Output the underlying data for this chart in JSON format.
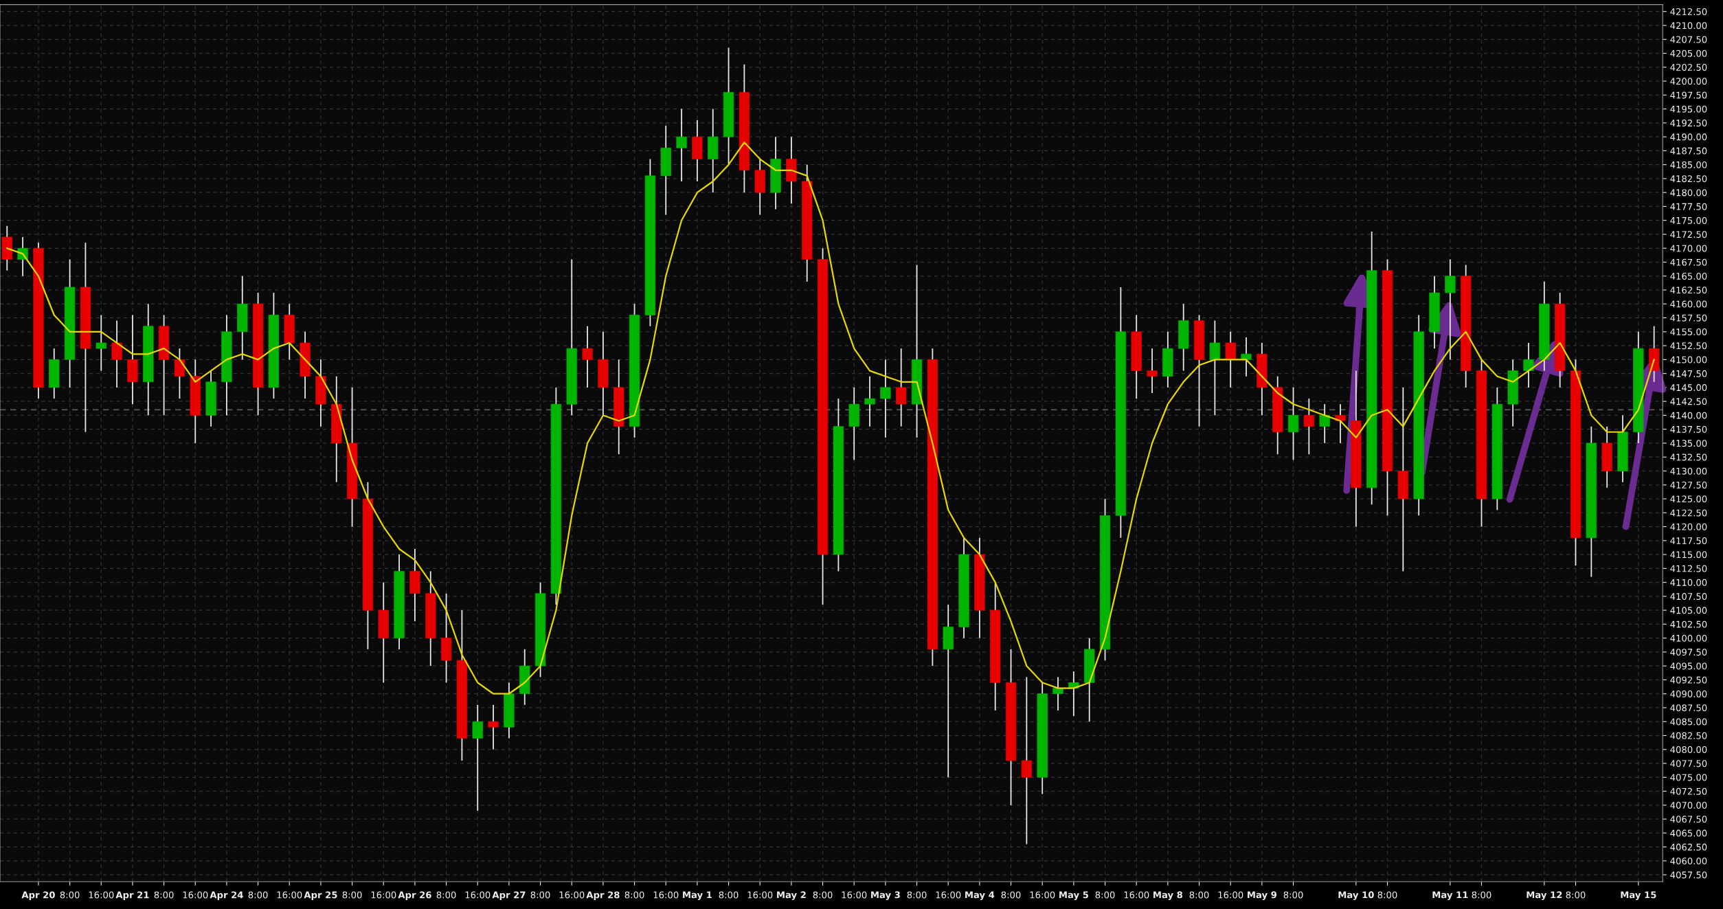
{
  "chart_data": {
    "type": "candlestick",
    "categories": [
      null,
      null,
      "Apr 20",
      null,
      "8:00",
      null,
      "16:00",
      null,
      "Apr 21",
      null,
      "8:00",
      null,
      "16:00",
      null,
      "Apr 24",
      null,
      "8:00",
      null,
      "16:00",
      null,
      "Apr 25",
      null,
      "8:00",
      null,
      "16:00",
      null,
      "Apr 26",
      null,
      "8:00",
      null,
      "16:00",
      null,
      "Apr 27",
      null,
      "8:00",
      null,
      "16:00",
      null,
      "Apr 28",
      null,
      "8:00",
      null,
      "16:00",
      null,
      "May 1",
      null,
      "8:00",
      null,
      "16:00",
      null,
      "May 2",
      null,
      "8:00",
      null,
      "16:00",
      null,
      "May 3",
      null,
      "8:00",
      null,
      "16:00",
      null,
      "May 4",
      null,
      "8:00",
      null,
      "16:00",
      null,
      "May 5",
      null,
      "8:00",
      null,
      "16:00",
      null,
      "May 8",
      null,
      "8:00",
      null,
      "16:00",
      null,
      "May 9",
      null,
      "8:00",
      null,
      null,
      null,
      "May 10",
      null,
      "8:00",
      null,
      null,
      null,
      "May 11",
      null,
      "8:00",
      null,
      null,
      null,
      "May 12",
      null,
      "8:00",
      null,
      null,
      null,
      "May 15",
      null
    ],
    "ohlc": [
      [
        4172,
        4174,
        4166,
        4168
      ],
      [
        4168,
        4172,
        4165,
        4170
      ],
      [
        4170,
        4171,
        4143,
        4145
      ],
      [
        4145,
        4152,
        4143,
        4150
      ],
      [
        4150,
        4168,
        4145,
        4163
      ],
      [
        4163,
        4171,
        4137,
        4152
      ],
      [
        4152,
        4158,
        4148,
        4153
      ],
      [
        4153,
        4157,
        4145,
        4150
      ],
      [
        4150,
        4158,
        4142,
        4146
      ],
      [
        4146,
        4160,
        4140,
        4156
      ],
      [
        4156,
        4158,
        4140,
        4150
      ],
      [
        4150,
        4152,
        4143,
        4147
      ],
      [
        4147,
        4150,
        4135,
        4140
      ],
      [
        4140,
        4148,
        4138,
        4146
      ],
      [
        4146,
        4158,
        4140,
        4155
      ],
      [
        4155,
        4165,
        4150,
        4160
      ],
      [
        4160,
        4162,
        4140,
        4145
      ],
      [
        4145,
        4162,
        4143,
        4158
      ],
      [
        4158,
        4160,
        4150,
        4153
      ],
      [
        4153,
        4155,
        4143,
        4147
      ],
      [
        4147,
        4150,
        4138,
        4142
      ],
      [
        4142,
        4147,
        4128,
        4135
      ],
      [
        4135,
        4145,
        4120,
        4125
      ],
      [
        4125,
        4128,
        4098,
        4105
      ],
      [
        4105,
        4110,
        4092,
        4100
      ],
      [
        4100,
        4115,
        4098,
        4112
      ],
      [
        4112,
        4116,
        4103,
        4108
      ],
      [
        4108,
        4112,
        4095,
        4100
      ],
      [
        4100,
        4108,
        4092,
        4096
      ],
      [
        4096,
        4105,
        4078,
        4082
      ],
      [
        4082,
        4088,
        4069,
        4085
      ],
      [
        4085,
        4088,
        4080,
        4084
      ],
      [
        4084,
        4092,
        4082,
        4090
      ],
      [
        4090,
        4098,
        4088,
        4095
      ],
      [
        4095,
        4110,
        4093,
        4108
      ],
      [
        4108,
        4145,
        4106,
        4142
      ],
      [
        4142,
        4168,
        4140,
        4152
      ],
      [
        4152,
        4156,
        4145,
        4150
      ],
      [
        4150,
        4155,
        4140,
        4145
      ],
      [
        4145,
        4150,
        4133,
        4138
      ],
      [
        4138,
        4160,
        4136,
        4158
      ],
      [
        4158,
        4186,
        4156,
        4183
      ],
      [
        4183,
        4192,
        4176,
        4188
      ],
      [
        4188,
        4195,
        4182,
        4190
      ],
      [
        4190,
        4193,
        4182,
        4186
      ],
      [
        4186,
        4195,
        4180,
        4190
      ],
      [
        4190,
        4206,
        4185,
        4198
      ],
      [
        4198,
        4203,
        4180,
        4184
      ],
      [
        4184,
        4186,
        4176,
        4180
      ],
      [
        4180,
        4190,
        4177,
        4186
      ],
      [
        4186,
        4190,
        4178,
        4182
      ],
      [
        4182,
        4185,
        4164,
        4168
      ],
      [
        4168,
        4170,
        4106,
        4115
      ],
      [
        4115,
        4143,
        4112,
        4138
      ],
      [
        4138,
        4145,
        4132,
        4142
      ],
      [
        4142,
        4147,
        4138,
        4143
      ],
      [
        4143,
        4150,
        4136,
        4145
      ],
      [
        4145,
        4152,
        4138,
        4142
      ],
      [
        4142,
        4167,
        4136,
        4150
      ],
      [
        4150,
        4152,
        4095,
        4098
      ],
      [
        4098,
        4106,
        4075,
        4102
      ],
      [
        4102,
        4118,
        4100,
        4115
      ],
      [
        4115,
        4118,
        4100,
        4105
      ],
      [
        4105,
        4110,
        4087,
        4092
      ],
      [
        4092,
        4098,
        4070,
        4078
      ],
      [
        4078,
        4093,
        4063,
        4075
      ],
      [
        4075,
        4092,
        4072,
        4090
      ],
      [
        4090,
        4093,
        4087,
        4091
      ],
      [
        4091,
        4094,
        4086,
        4092
      ],
      [
        4092,
        4100,
        4085,
        4098
      ],
      [
        4098,
        4125,
        4096,
        4122
      ],
      [
        4122,
        4163,
        4118,
        4155
      ],
      [
        4155,
        4158,
        4143,
        4148
      ],
      [
        4148,
        4152,
        4144,
        4147
      ],
      [
        4147,
        4155,
        4145,
        4152
      ],
      [
        4152,
        4160,
        4148,
        4157
      ],
      [
        4157,
        4158,
        4138,
        4150
      ],
      [
        4150,
        4157,
        4140,
        4153
      ],
      [
        4153,
        4155,
        4145,
        4150
      ],
      [
        4150,
        4154,
        4147,
        4151
      ],
      [
        4151,
        4153,
        4140,
        4145
      ],
      [
        4145,
        4147,
        4133,
        4137
      ],
      [
        4137,
        4145,
        4132,
        4140
      ],
      [
        4140,
        4143,
        4133,
        4138
      ],
      [
        4138,
        4142,
        4135,
        4140
      ],
      [
        4140,
        4142,
        4135,
        4139
      ],
      [
        4139,
        4148,
        4120,
        4127
      ],
      [
        4127,
        4173,
        4124,
        4166
      ],
      [
        4166,
        4168,
        4122,
        4130
      ],
      [
        4130,
        4145,
        4112,
        4125
      ],
      [
        4125,
        4158,
        4122,
        4155
      ],
      [
        4155,
        4165,
        4152,
        4162
      ],
      [
        4162,
        4168,
        4150,
        4165
      ],
      [
        4165,
        4167,
        4145,
        4148
      ],
      [
        4148,
        4150,
        4120,
        4125
      ],
      [
        4125,
        4145,
        4123,
        4142
      ],
      [
        4142,
        4150,
        4138,
        4148
      ],
      [
        4148,
        4153,
        4145,
        4150
      ],
      [
        4150,
        4164,
        4148,
        4160
      ],
      [
        4160,
        4162,
        4145,
        4148
      ],
      [
        4148,
        4150,
        4113,
        4118
      ],
      [
        4118,
        4138,
        4111,
        4135
      ],
      [
        4135,
        4138,
        4127,
        4130
      ],
      [
        4130,
        4140,
        4128,
        4137
      ],
      [
        4137,
        4155,
        4135,
        4152
      ],
      [
        4152,
        4156,
        4146,
        4148
      ]
    ],
    "series": [
      {
        "type": "line",
        "color": "#e6d800",
        "values": [
          4170,
          4169,
          4165,
          4158,
          4155,
          4155,
          4155,
          4153,
          4151,
          4151,
          4152,
          4150,
          4146,
          4148,
          4150,
          4151,
          4150,
          4152,
          4153,
          4150,
          4147,
          4142,
          4132,
          4125,
          4120,
          4116,
          4114,
          4110,
          4105,
          4097,
          4092,
          4090,
          4090,
          4092,
          4095,
          4105,
          4122,
          4135,
          4140,
          4139,
          4140,
          4150,
          4165,
          4175,
          4180,
          4182,
          4185,
          4189,
          4186,
          4184,
          4184,
          4183,
          4175,
          4160,
          4152,
          4148,
          4147,
          4146,
          4146,
          4135,
          4123,
          4118,
          4115,
          4110,
          4103,
          4095,
          4092,
          4091,
          4091,
          4092,
          4100,
          4112,
          4125,
          4135,
          4142,
          4146,
          4149,
          4150,
          4150,
          4150,
          4147,
          4144,
          4142,
          4141,
          4140,
          4139,
          4136,
          4140,
          4141,
          4138,
          4143,
          4148,
          4152,
          4155,
          4150,
          4147,
          4146,
          4148,
          4150,
          4153,
          4148,
          4140,
          4137,
          4137,
          4141,
          4150
        ]
      }
    ],
    "ylim": [
      4056.25,
      4213.75
    ],
    "yticks": [
      {
        "value": 4057.5,
        "label": "4057.50"
      },
      {
        "value": 4060,
        "label": "4060.00"
      },
      {
        "value": 4062.5,
        "label": "4062.50"
      },
      {
        "value": 4065,
        "label": "4065.00"
      },
      {
        "value": 4067.5,
        "label": "4067.50"
      },
      {
        "value": 4070,
        "label": "4070.00"
      },
      {
        "value": 4072.5,
        "label": "4072.50"
      },
      {
        "value": 4075,
        "label": "4075.00"
      },
      {
        "value": 4077.5,
        "label": "4077.50"
      },
      {
        "value": 4080,
        "label": "4080.00"
      },
      {
        "value": 4082.5,
        "label": "4082.50"
      },
      {
        "value": 4085,
        "label": "4085.00"
      },
      {
        "value": 4087.5,
        "label": "4087.50"
      },
      {
        "value": 4090,
        "label": "4090.00"
      },
      {
        "value": 4092.5,
        "label": "4092.50"
      },
      {
        "value": 4095,
        "label": "4095.00"
      },
      {
        "value": 4097.5,
        "label": "4097.50"
      },
      {
        "value": 4100,
        "label": "4100.00"
      },
      {
        "value": 4102.5,
        "label": "4102.50"
      },
      {
        "value": 4105,
        "label": "4105.00"
      },
      {
        "value": 4107.5,
        "label": "4107.50"
      },
      {
        "value": 4110,
        "label": "4110.00"
      },
      {
        "value": 4112.5,
        "label": "4112.50"
      },
      {
        "value": 4115,
        "label": "4115.00"
      },
      {
        "value": 4117.5,
        "label": "4117.50"
      },
      {
        "value": 4120,
        "label": "4120.00"
      },
      {
        "value": 4122.5,
        "label": "4122.50"
      },
      {
        "value": 4125,
        "label": "4125.00"
      },
      {
        "value": 4127.5,
        "label": "4127.50"
      },
      {
        "value": 4130,
        "label": "4130.00"
      },
      {
        "value": 4132.5,
        "label": "4132.50"
      },
      {
        "value": 4135,
        "label": "4135.00"
      },
      {
        "value": 4137.5,
        "label": "4137.50"
      },
      {
        "value": 4140,
        "label": "4140.00"
      },
      {
        "value": 4142.5,
        "label": "4142.50"
      },
      {
        "value": 4145,
        "label": "4145.00"
      },
      {
        "value": 4147.5,
        "label": "4147.50"
      },
      {
        "value": 4150,
        "label": "4150.00"
      },
      {
        "value": 4152.5,
        "label": "4152.50"
      },
      {
        "value": 4155,
        "label": "4155.00"
      },
      {
        "value": 4157.5,
        "label": "4157.50"
      },
      {
        "value": 4160,
        "label": "4160.00"
      },
      {
        "value": 4162.5,
        "label": "4162.50"
      },
      {
        "value": 4165,
        "label": "4165.00"
      },
      {
        "value": 4167.5,
        "label": "4167.50"
      },
      {
        "value": 4170,
        "label": "4170.00"
      },
      {
        "value": 4172.5,
        "label": "4172.50"
      },
      {
        "value": 4175,
        "label": "4175.00"
      },
      {
        "value": 4177.5,
        "label": "4177.50"
      },
      {
        "value": 4180,
        "label": "4180.00"
      },
      {
        "value": 4182.5,
        "label": "4182.50"
      },
      {
        "value": 4185,
        "label": "4185.00"
      },
      {
        "value": 4187.5,
        "label": "4187.50"
      },
      {
        "value": 4190,
        "label": "4190.00"
      },
      {
        "value": 4192.5,
        "label": "4192.50"
      },
      {
        "value": 4195,
        "label": "4195.00"
      },
      {
        "value": 4197.5,
        "label": "4197.50"
      },
      {
        "value": 4200,
        "label": "4200.00"
      },
      {
        "value": 4202.5,
        "label": "4202.50"
      },
      {
        "value": 4205,
        "label": "4205.00"
      },
      {
        "value": 4207.5,
        "label": "4207.50"
      },
      {
        "value": 4210,
        "label": "4210.00"
      },
      {
        "value": 4212.5,
        "label": "4212.50"
      }
    ],
    "ref_lines": [
      {
        "axis": "y",
        "value": 4141,
        "color": "#5a5a5a",
        "line_style": "dashed"
      }
    ],
    "grid": true
  }
}
